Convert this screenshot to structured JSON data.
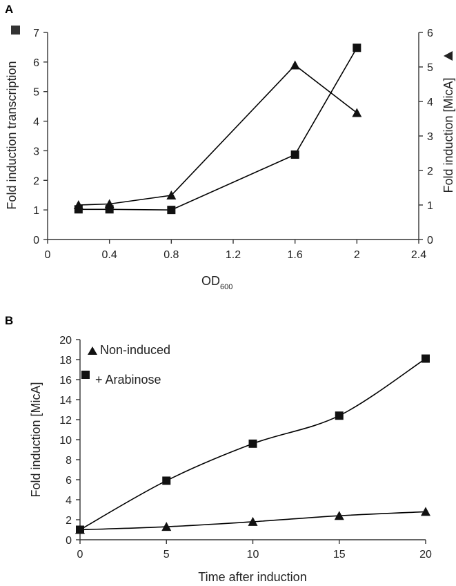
{
  "chart_data": [
    {
      "panel": "A",
      "type": "line",
      "xlabel": "OD",
      "xlabel_sub": "600",
      "ylabel_left": "Fold induction transcription",
      "ylabel_right": "Fold induction [MicA]",
      "left_marker_icon": "square-icon",
      "right_marker_icon": "triangle-left-icon",
      "xlim": [
        0,
        2.4
      ],
      "ylim_left": [
        0,
        7
      ],
      "ylim_right": [
        0,
        6
      ],
      "xticks": [
        "0",
        "0.4",
        "0.8",
        "1.2",
        "1.6",
        "2",
        "2.4"
      ],
      "yticks_left": [
        "0",
        "1",
        "2",
        "3",
        "4",
        "5",
        "6",
        "7"
      ],
      "yticks_right": [
        "0",
        "1",
        "2",
        "3",
        "4",
        "5",
        "6"
      ],
      "grid": false,
      "series": [
        {
          "marker": "square",
          "axis": "left",
          "x": [
            0.2,
            0.4,
            0.8,
            1.6,
            2.0
          ],
          "y": [
            1.02,
            1.02,
            1.0,
            2.87,
            6.48
          ]
        },
        {
          "marker": "triangle",
          "axis": "right",
          "x": [
            0.2,
            0.4,
            0.8,
            1.6,
            2.0
          ],
          "y": [
            1.0,
            1.03,
            1.28,
            5.05,
            3.67
          ]
        }
      ]
    },
    {
      "panel": "B",
      "type": "line",
      "xlabel": "Time after induction",
      "ylabel": "Fold induction [MicA]",
      "xlim": [
        0,
        20
      ],
      "ylim": [
        0,
        20
      ],
      "xticks": [
        "0",
        "5",
        "10",
        "15",
        "20"
      ],
      "yticks": [
        "0",
        "2",
        "4",
        "6",
        "8",
        "10",
        "12",
        "14",
        "16",
        "18",
        "20"
      ],
      "grid": false,
      "legend_position": "top-left",
      "series": [
        {
          "name": "Non-induced",
          "marker": "triangle",
          "x": [
            0,
            5,
            10,
            15,
            20
          ],
          "y": [
            1.0,
            1.3,
            1.8,
            2.4,
            2.8
          ]
        },
        {
          "name": "+ Arabinose",
          "marker": "square",
          "x": [
            0,
            5,
            10,
            15,
            20
          ],
          "y": [
            1.0,
            5.9,
            9.6,
            12.4,
            18.1
          ]
        }
      ]
    }
  ]
}
